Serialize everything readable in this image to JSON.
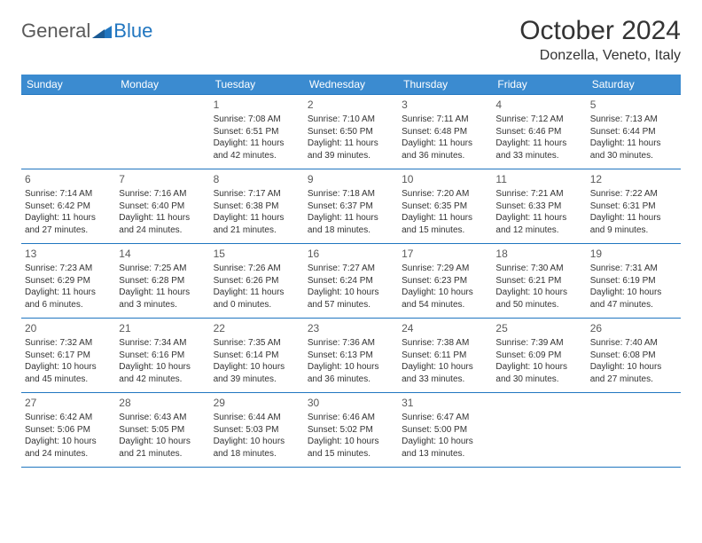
{
  "logo": {
    "general": "General",
    "blue": "Blue"
  },
  "title": "October 2024",
  "location": "Donzella, Veneto, Italy",
  "header_bg": "#3b8bd0",
  "border_color": "#2176c0",
  "day_headers": [
    "Sunday",
    "Monday",
    "Tuesday",
    "Wednesday",
    "Thursday",
    "Friday",
    "Saturday"
  ],
  "weeks": [
    [
      null,
      null,
      {
        "n": "1",
        "sr": "Sunrise: 7:08 AM",
        "ss": "Sunset: 6:51 PM",
        "dl1": "Daylight: 11 hours",
        "dl2": "and 42 minutes."
      },
      {
        "n": "2",
        "sr": "Sunrise: 7:10 AM",
        "ss": "Sunset: 6:50 PM",
        "dl1": "Daylight: 11 hours",
        "dl2": "and 39 minutes."
      },
      {
        "n": "3",
        "sr": "Sunrise: 7:11 AM",
        "ss": "Sunset: 6:48 PM",
        "dl1": "Daylight: 11 hours",
        "dl2": "and 36 minutes."
      },
      {
        "n": "4",
        "sr": "Sunrise: 7:12 AM",
        "ss": "Sunset: 6:46 PM",
        "dl1": "Daylight: 11 hours",
        "dl2": "and 33 minutes."
      },
      {
        "n": "5",
        "sr": "Sunrise: 7:13 AM",
        "ss": "Sunset: 6:44 PM",
        "dl1": "Daylight: 11 hours",
        "dl2": "and 30 minutes."
      }
    ],
    [
      {
        "n": "6",
        "sr": "Sunrise: 7:14 AM",
        "ss": "Sunset: 6:42 PM",
        "dl1": "Daylight: 11 hours",
        "dl2": "and 27 minutes."
      },
      {
        "n": "7",
        "sr": "Sunrise: 7:16 AM",
        "ss": "Sunset: 6:40 PM",
        "dl1": "Daylight: 11 hours",
        "dl2": "and 24 minutes."
      },
      {
        "n": "8",
        "sr": "Sunrise: 7:17 AM",
        "ss": "Sunset: 6:38 PM",
        "dl1": "Daylight: 11 hours",
        "dl2": "and 21 minutes."
      },
      {
        "n": "9",
        "sr": "Sunrise: 7:18 AM",
        "ss": "Sunset: 6:37 PM",
        "dl1": "Daylight: 11 hours",
        "dl2": "and 18 minutes."
      },
      {
        "n": "10",
        "sr": "Sunrise: 7:20 AM",
        "ss": "Sunset: 6:35 PM",
        "dl1": "Daylight: 11 hours",
        "dl2": "and 15 minutes."
      },
      {
        "n": "11",
        "sr": "Sunrise: 7:21 AM",
        "ss": "Sunset: 6:33 PM",
        "dl1": "Daylight: 11 hours",
        "dl2": "and 12 minutes."
      },
      {
        "n": "12",
        "sr": "Sunrise: 7:22 AM",
        "ss": "Sunset: 6:31 PM",
        "dl1": "Daylight: 11 hours",
        "dl2": "and 9 minutes."
      }
    ],
    [
      {
        "n": "13",
        "sr": "Sunrise: 7:23 AM",
        "ss": "Sunset: 6:29 PM",
        "dl1": "Daylight: 11 hours",
        "dl2": "and 6 minutes."
      },
      {
        "n": "14",
        "sr": "Sunrise: 7:25 AM",
        "ss": "Sunset: 6:28 PM",
        "dl1": "Daylight: 11 hours",
        "dl2": "and 3 minutes."
      },
      {
        "n": "15",
        "sr": "Sunrise: 7:26 AM",
        "ss": "Sunset: 6:26 PM",
        "dl1": "Daylight: 11 hours",
        "dl2": "and 0 minutes."
      },
      {
        "n": "16",
        "sr": "Sunrise: 7:27 AM",
        "ss": "Sunset: 6:24 PM",
        "dl1": "Daylight: 10 hours",
        "dl2": "and 57 minutes."
      },
      {
        "n": "17",
        "sr": "Sunrise: 7:29 AM",
        "ss": "Sunset: 6:23 PM",
        "dl1": "Daylight: 10 hours",
        "dl2": "and 54 minutes."
      },
      {
        "n": "18",
        "sr": "Sunrise: 7:30 AM",
        "ss": "Sunset: 6:21 PM",
        "dl1": "Daylight: 10 hours",
        "dl2": "and 50 minutes."
      },
      {
        "n": "19",
        "sr": "Sunrise: 7:31 AM",
        "ss": "Sunset: 6:19 PM",
        "dl1": "Daylight: 10 hours",
        "dl2": "and 47 minutes."
      }
    ],
    [
      {
        "n": "20",
        "sr": "Sunrise: 7:32 AM",
        "ss": "Sunset: 6:17 PM",
        "dl1": "Daylight: 10 hours",
        "dl2": "and 45 minutes."
      },
      {
        "n": "21",
        "sr": "Sunrise: 7:34 AM",
        "ss": "Sunset: 6:16 PM",
        "dl1": "Daylight: 10 hours",
        "dl2": "and 42 minutes."
      },
      {
        "n": "22",
        "sr": "Sunrise: 7:35 AM",
        "ss": "Sunset: 6:14 PM",
        "dl1": "Daylight: 10 hours",
        "dl2": "and 39 minutes."
      },
      {
        "n": "23",
        "sr": "Sunrise: 7:36 AM",
        "ss": "Sunset: 6:13 PM",
        "dl1": "Daylight: 10 hours",
        "dl2": "and 36 minutes."
      },
      {
        "n": "24",
        "sr": "Sunrise: 7:38 AM",
        "ss": "Sunset: 6:11 PM",
        "dl1": "Daylight: 10 hours",
        "dl2": "and 33 minutes."
      },
      {
        "n": "25",
        "sr": "Sunrise: 7:39 AM",
        "ss": "Sunset: 6:09 PM",
        "dl1": "Daylight: 10 hours",
        "dl2": "and 30 minutes."
      },
      {
        "n": "26",
        "sr": "Sunrise: 7:40 AM",
        "ss": "Sunset: 6:08 PM",
        "dl1": "Daylight: 10 hours",
        "dl2": "and 27 minutes."
      }
    ],
    [
      {
        "n": "27",
        "sr": "Sunrise: 6:42 AM",
        "ss": "Sunset: 5:06 PM",
        "dl1": "Daylight: 10 hours",
        "dl2": "and 24 minutes."
      },
      {
        "n": "28",
        "sr": "Sunrise: 6:43 AM",
        "ss": "Sunset: 5:05 PM",
        "dl1": "Daylight: 10 hours",
        "dl2": "and 21 minutes."
      },
      {
        "n": "29",
        "sr": "Sunrise: 6:44 AM",
        "ss": "Sunset: 5:03 PM",
        "dl1": "Daylight: 10 hours",
        "dl2": "and 18 minutes."
      },
      {
        "n": "30",
        "sr": "Sunrise: 6:46 AM",
        "ss": "Sunset: 5:02 PM",
        "dl1": "Daylight: 10 hours",
        "dl2": "and 15 minutes."
      },
      {
        "n": "31",
        "sr": "Sunrise: 6:47 AM",
        "ss": "Sunset: 5:00 PM",
        "dl1": "Daylight: 10 hours",
        "dl2": "and 13 minutes."
      },
      null,
      null
    ]
  ]
}
